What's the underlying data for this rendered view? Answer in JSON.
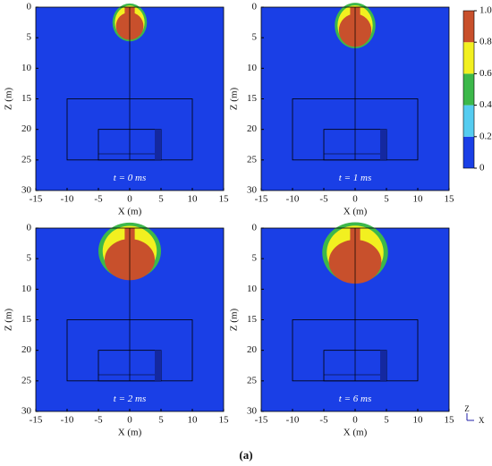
{
  "chart_data": [
    {
      "type": "contour",
      "annotation": "t = 0 ms",
      "xlabel": "X (m)",
      "ylabel": "Z (m)",
      "xlim": [
        -15,
        15
      ],
      "ylim": [
        30,
        0
      ],
      "xticks": [
        -15,
        -10,
        -5,
        0,
        5,
        10,
        15
      ],
      "yticks": [
        0,
        5,
        10,
        15,
        20,
        25,
        30
      ]
    },
    {
      "type": "contour",
      "annotation": "t = 1 ms",
      "xlabel": "X (m)",
      "ylabel": "Z (m)",
      "xlim": [
        -15,
        15
      ],
      "ylim": [
        30,
        0
      ],
      "xticks": [
        -15,
        -10,
        -5,
        0,
        5,
        10,
        15
      ],
      "yticks": [
        0,
        5,
        10,
        15,
        20,
        25,
        30
      ]
    },
    {
      "type": "contour",
      "annotation": "t = 2 ms",
      "xlabel": "X (m)",
      "ylabel": "Z (m)",
      "xlim": [
        -15,
        15
      ],
      "ylim": [
        30,
        0
      ],
      "xticks": [
        -15,
        -10,
        -5,
        0,
        5,
        10,
        15
      ],
      "yticks": [
        0,
        5,
        10,
        15,
        20,
        25,
        30
      ]
    },
    {
      "type": "contour",
      "annotation": "t = 6 ms",
      "xlabel": "X (m)",
      "ylabel": "Z (m)",
      "xlim": [
        -15,
        15
      ],
      "ylim": [
        30,
        0
      ],
      "xticks": [
        -15,
        -10,
        -5,
        0,
        5,
        10,
        15
      ],
      "yticks": [
        0,
        5,
        10,
        15,
        20,
        25,
        30
      ]
    }
  ],
  "colorbar": {
    "lim": [
      0,
      1
    ],
    "ticks": [
      0,
      0.2,
      0.4,
      0.6,
      0.8,
      {
        "value": 1,
        "label": "1.0"
      }
    ],
    "colors": [
      "#1a3fe6",
      "#55ccf0",
      "#3cb84a",
      "#f2f020",
      "#c8502c"
    ]
  },
  "caption": "(a)",
  "axes_icon": {
    "z": "Z",
    "x": "X"
  }
}
